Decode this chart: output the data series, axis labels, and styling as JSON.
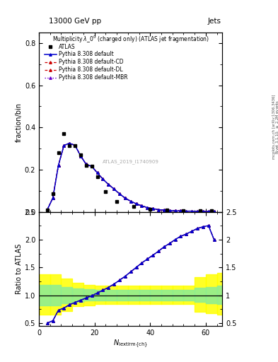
{
  "title_top": "13000 GeV pp",
  "title_right": "Jets",
  "main_title": "Multiplicity $\\lambda\\_0^0$ (charged only) (ATLAS jet fragmentation)",
  "ylabel_main": "fraction/bin",
  "ylabel_ratio": "Ratio to ATLAS",
  "watermark": "ATLAS_2019_I1740909",
  "atlas_x": [
    3,
    5,
    7,
    9,
    11,
    13,
    15,
    17,
    19,
    21,
    24,
    28,
    34,
    40,
    46,
    52,
    58,
    62
  ],
  "atlas_y": [
    0.01,
    0.085,
    0.28,
    0.37,
    0.315,
    0.315,
    0.27,
    0.22,
    0.215,
    0.165,
    0.095,
    0.05,
    0.025,
    0.012,
    0.008,
    0.006,
    0.005,
    0.005
  ],
  "pythia_x": [
    3,
    5,
    7,
    9,
    11,
    13,
    15,
    17,
    19,
    21,
    23,
    25,
    27,
    29,
    31,
    33,
    35,
    37,
    39,
    41,
    43,
    45,
    47,
    49,
    51,
    53,
    55,
    57,
    59,
    61,
    63
  ],
  "pythia_y": [
    0.01,
    0.065,
    0.22,
    0.315,
    0.325,
    0.315,
    0.265,
    0.225,
    0.215,
    0.185,
    0.155,
    0.13,
    0.108,
    0.085,
    0.065,
    0.05,
    0.038,
    0.028,
    0.02,
    0.015,
    0.01,
    0.008,
    0.006,
    0.005,
    0.004,
    0.003,
    0.003,
    0.002,
    0.002,
    0.002,
    0.002
  ],
  "ratio_x": [
    3,
    5,
    7,
    9,
    11,
    13,
    15,
    17,
    19,
    21,
    23,
    25,
    27,
    29,
    31,
    33,
    35,
    37,
    39,
    41,
    43,
    45,
    47,
    49,
    51,
    53,
    55,
    57,
    59,
    61,
    63
  ],
  "ratio_y": [
    0.5,
    0.54,
    0.73,
    0.77,
    0.83,
    0.87,
    0.91,
    0.95,
    0.99,
    1.04,
    1.09,
    1.14,
    1.2,
    1.27,
    1.34,
    1.42,
    1.5,
    1.58,
    1.65,
    1.72,
    1.79,
    1.87,
    1.93,
    2.0,
    2.06,
    2.1,
    2.15,
    2.2,
    2.23,
    2.25,
    2.0
  ],
  "band_x": [
    0,
    4,
    8,
    12,
    16,
    20,
    24,
    28,
    32,
    36,
    40,
    44,
    48,
    52,
    56,
    60,
    64,
    68
  ],
  "by_lo": [
    0.65,
    0.65,
    0.72,
    0.8,
    0.82,
    0.84,
    0.84,
    0.84,
    0.84,
    0.84,
    0.84,
    0.84,
    0.84,
    0.84,
    0.7,
    0.68,
    0.65,
    0.65
  ],
  "by_hi": [
    1.38,
    1.38,
    1.3,
    1.22,
    1.18,
    1.17,
    1.17,
    1.17,
    1.17,
    1.17,
    1.17,
    1.17,
    1.17,
    1.17,
    1.32,
    1.38,
    1.4,
    1.4
  ],
  "bg_lo": [
    0.82,
    0.82,
    0.86,
    0.88,
    0.9,
    0.91,
    0.91,
    0.91,
    0.91,
    0.91,
    0.91,
    0.91,
    0.91,
    0.91,
    0.88,
    0.86,
    0.84,
    0.84
  ],
  "bg_hi": [
    1.18,
    1.18,
    1.15,
    1.12,
    1.11,
    1.1,
    1.1,
    1.1,
    1.1,
    1.1,
    1.1,
    1.1,
    1.1,
    1.1,
    1.13,
    1.15,
    1.17,
    1.17
  ],
  "color_default": "#0000cc",
  "color_cd": "#cc0000",
  "color_dl": "#cc0000",
  "color_mbr": "#6600cc",
  "ylim_main": [
    0.0,
    0.85
  ],
  "ylim_ratio": [
    0.45,
    2.5
  ],
  "xlim": [
    0,
    66
  ]
}
